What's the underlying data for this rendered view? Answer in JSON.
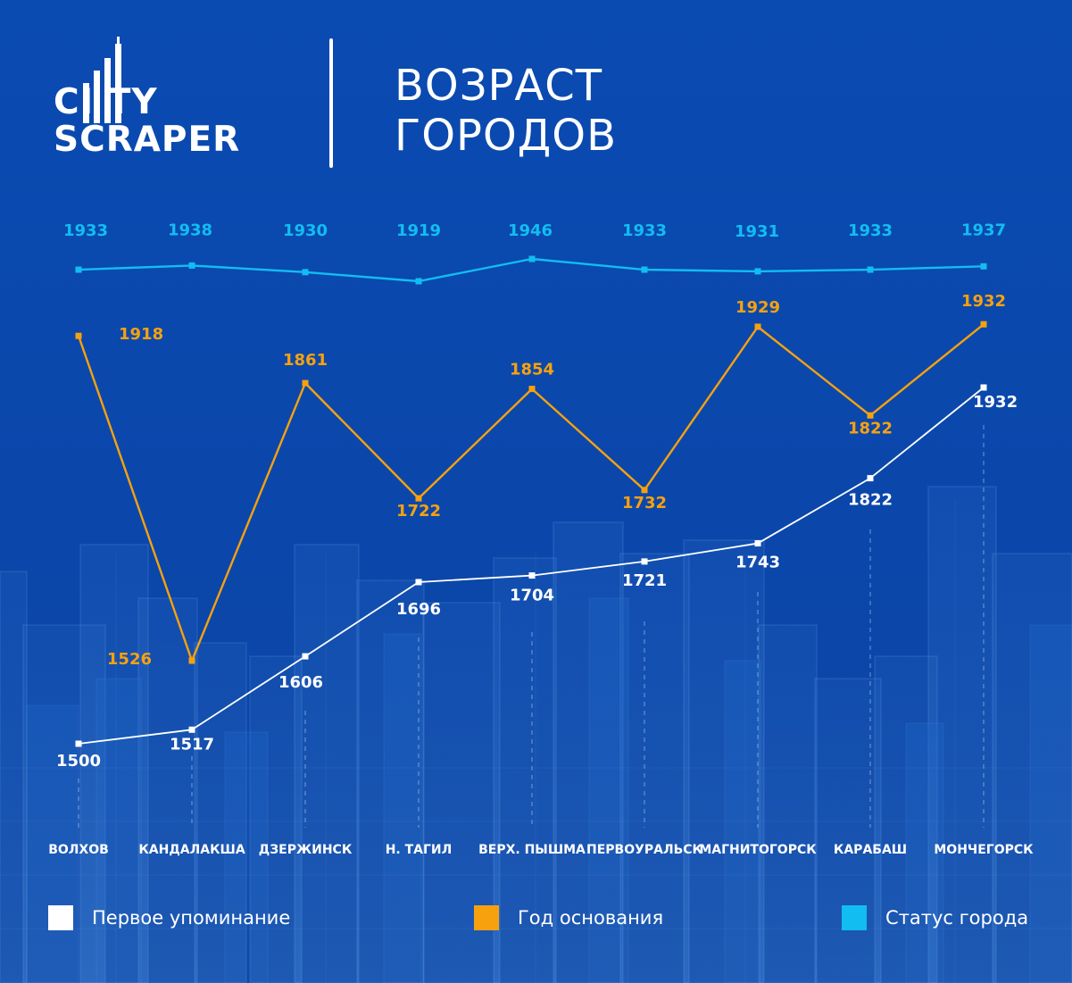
{
  "header": {
    "logo": {
      "line1": "CI TY",
      "line2": "SCRAPER"
    },
    "title_lines": [
      "ВОЗРАСТ",
      "ГОРОДОВ"
    ]
  },
  "legend": {
    "items": [
      {
        "label": "Первое упоминание",
        "color": "#ffffff"
      },
      {
        "label": "Год основания",
        "color": "#f7a10f"
      },
      {
        "label": "Статус города",
        "color": "#12bdf2"
      }
    ]
  },
  "colors": {
    "background": "#0a4ab0",
    "first_mention": "#ffffff",
    "foundation": "#f7a10f",
    "city_status": "#12bdf2"
  },
  "chart_data": {
    "type": "line",
    "title": "ВОЗРАСТ ГОРОДОВ",
    "categories": [
      "ВОЛХОВ",
      "КАНДАЛАКША",
      "ДЗЕРЖИНСК",
      "Н. ТАГИЛ",
      "ВЕРХ. ПЫШМА",
      "ПЕРВОУРАЛЬСК",
      "МАГНИТОГОРСК",
      "КАРАБАШ",
      "МОНЧЕГОРСК"
    ],
    "series": [
      {
        "name": "Первое упоминание",
        "color": "#ffffff",
        "values": [
          1500,
          1517,
          1606,
          1696,
          1704,
          1721,
          1743,
          1822,
          1932
        ]
      },
      {
        "name": "Год основания",
        "color": "#f7a10f",
        "values": [
          1918,
          1526,
          1861,
          1722,
          1854,
          1732,
          1929,
          1822,
          1932
        ]
      },
      {
        "name": "Статус города",
        "color": "#12bdf2",
        "values": [
          1933,
          1938,
          1930,
          1919,
          1946,
          1933,
          1931,
          1933,
          1937
        ]
      }
    ],
    "grid": false,
    "legend_position": "bottom",
    "xlabel": "",
    "ylabel": ""
  }
}
